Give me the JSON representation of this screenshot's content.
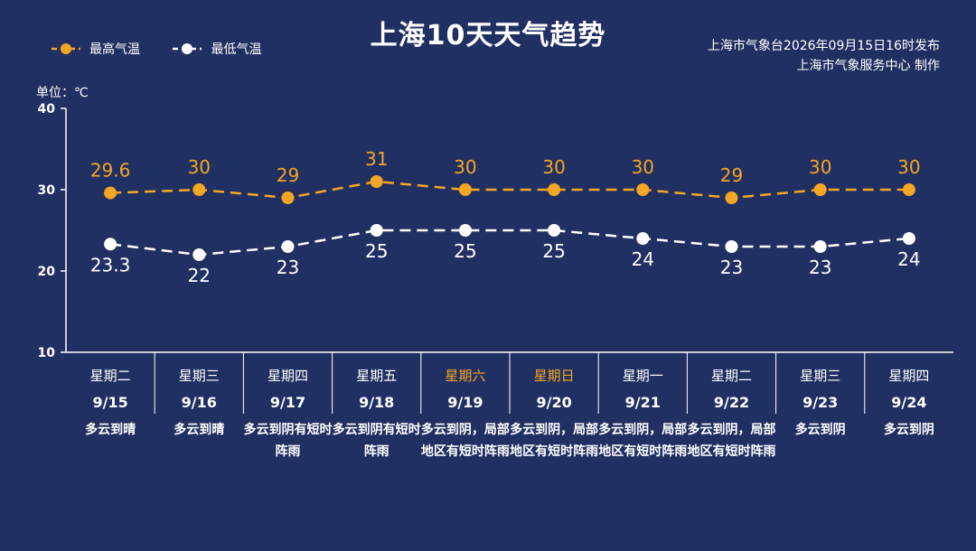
{
  "header": {
    "title": "上海10天天气趋势",
    "source_line1": "上海市气象台2026年09月15日16时发布",
    "source_line2": "上海市气象服务中心  制作"
  },
  "legend": {
    "high_label": "最高气温",
    "low_label": "最低气温"
  },
  "unit_label": "单位：℃",
  "colors": {
    "background": "#213062",
    "high": "#f5a623",
    "low": "#ffffff",
    "weekend": "#f5a623"
  },
  "chart_data": {
    "type": "line",
    "title": "上海10天天气趋势",
    "ylabel": "单位：℃",
    "ylim": [
      10,
      40
    ],
    "yticks": [
      10,
      20,
      30,
      40
    ],
    "grid": false,
    "legend_position": "top-left",
    "x": [
      "9/15",
      "9/16",
      "9/17",
      "9/18",
      "9/19",
      "9/20",
      "9/21",
      "9/22",
      "9/23",
      "9/24"
    ],
    "weekdays": [
      "星期二",
      "星期三",
      "星期四",
      "星期五",
      "星期六",
      "星期日",
      "星期一",
      "星期二",
      "星期三",
      "星期四"
    ],
    "weekend": [
      false,
      false,
      false,
      false,
      true,
      true,
      false,
      false,
      false,
      false
    ],
    "weather": [
      "多云到晴",
      "多云到晴",
      "多云到阴有短时阵雨",
      "多云到阴有短时阵雨",
      "多云到阴，局部地区有短时阵雨",
      "多云到阴，局部地区有短时阵雨",
      "多云到阴，局部地区有短时阵雨",
      "多云到阴，局部地区有短时阵雨",
      "多云到阴",
      "多云到阴"
    ],
    "series": [
      {
        "name": "最高气温",
        "values": [
          29.6,
          30,
          29,
          31,
          30,
          30,
          30,
          29,
          30,
          30
        ],
        "labels": [
          "29.6",
          "30",
          "29",
          "31",
          "30",
          "30",
          "30",
          "29",
          "30",
          "30"
        ]
      },
      {
        "name": "最低气温",
        "values": [
          23.3,
          22,
          23,
          25,
          25,
          25,
          24,
          23,
          23,
          24
        ],
        "labels": [
          "23.3",
          "22",
          "23",
          "25",
          "25",
          "25",
          "24",
          "23",
          "23",
          "24"
        ]
      }
    ]
  }
}
